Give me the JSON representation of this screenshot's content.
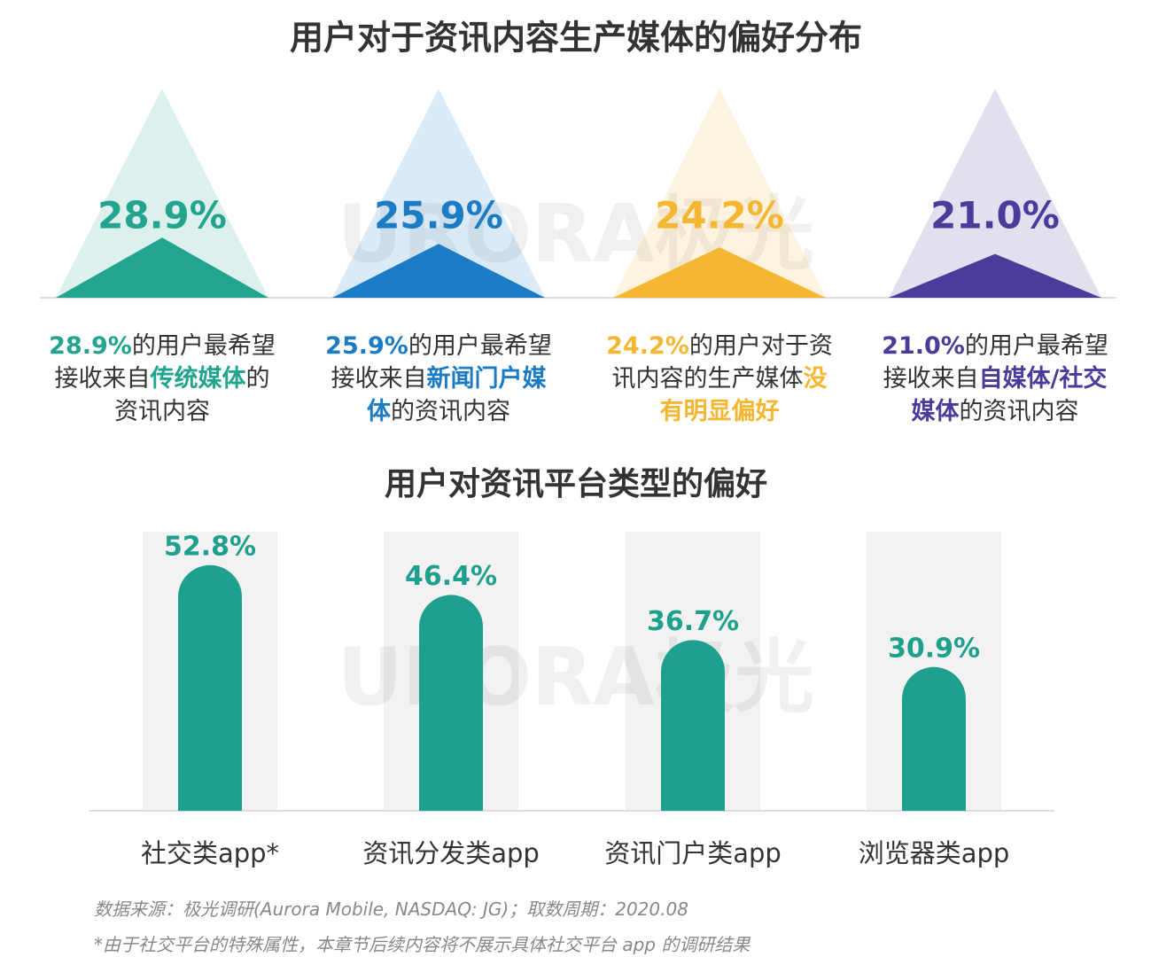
{
  "chart_data": [
    {
      "type": "triangle",
      "title": "用户对于资讯内容生产媒体的偏好分布",
      "values": [
        28.9,
        25.9,
        24.2,
        21.0
      ],
      "value_labels": [
        "28.9%",
        "25.9%",
        "24.2%",
        "21.0%"
      ],
      "colors": [
        "#23a48f",
        "#1b7bc4",
        "#f5b731",
        "#4b3b9b"
      ],
      "descriptions": [
        [
          "28.9%",
          "的用户最希望接收来自",
          "传统媒体",
          "的资讯内容"
        ],
        [
          "25.9%",
          "的用户最希望接收来自",
          "新闻门户媒体",
          "的资讯内容"
        ],
        [
          "24.2%",
          "的用户对于资讯内容的生产媒体",
          "没有明显偏好"
        ],
        [
          "21.0%",
          "的用户最希望接收来自",
          "自媒体/社交媒体",
          "的资讯内容"
        ]
      ]
    },
    {
      "type": "bar",
      "title": "用户对资讯平台类型的偏好",
      "categories": [
        "社交类app*",
        "资讯分发类app",
        "资讯门户类app",
        "浏览器类app"
      ],
      "values": [
        52.8,
        46.4,
        36.7,
        30.9
      ],
      "value_labels": [
        "52.8%",
        "46.4%",
        "36.7%",
        "30.9%"
      ],
      "color": "#1fa08e",
      "ylim": [
        0,
        60
      ]
    }
  ],
  "watermark": "URORA极光",
  "source": "数据来源：极光调研(Aurora Mobile, NASDAQ: JG)；取数周期：2020.08",
  "note": "*由于社交平台的特殊属性，本章节后续内容将不展示具体社交平台 app 的调研结果"
}
